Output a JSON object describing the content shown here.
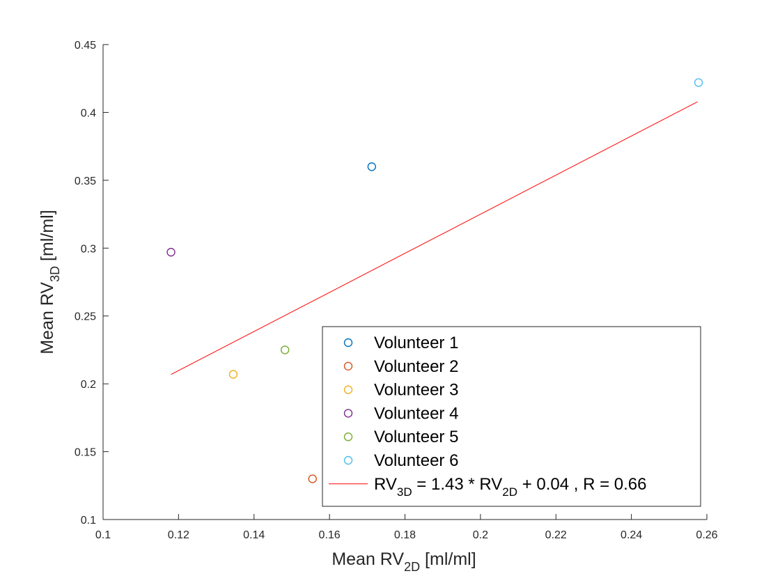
{
  "chart_data": {
    "type": "scatter",
    "xlabel": {
      "prefix": "Mean RV",
      "sub": "2D",
      "suffix": " [ml/ml]"
    },
    "ylabel": {
      "prefix": "Mean RV",
      "sub": "3D",
      "suffix": " [ml/ml]"
    },
    "xlim": [
      0.1,
      0.26
    ],
    "ylim": [
      0.1,
      0.45
    ],
    "xticks": [
      0.1,
      0.12,
      0.14,
      0.16,
      0.18,
      0.2,
      0.22,
      0.24,
      0.26
    ],
    "xtick_labels": [
      "0.1",
      "0.12",
      "0.14",
      "0.16",
      "0.18",
      "0.2",
      "0.22",
      "0.24",
      "0.26"
    ],
    "yticks": [
      0.1,
      0.15,
      0.2,
      0.25,
      0.3,
      0.35,
      0.4,
      0.45
    ],
    "ytick_labels": [
      "0.1",
      "0.15",
      "0.2",
      "0.25",
      "0.3",
      "0.35",
      "0.4",
      "0.45"
    ],
    "grid": false,
    "series": [
      {
        "name": "Volunteer 1",
        "color": "#0072BD",
        "x": [
          0.1712
        ],
        "y": [
          0.36
        ]
      },
      {
        "name": "Volunteer 2",
        "color": "#D95319",
        "x": [
          0.1555
        ],
        "y": [
          0.13
        ]
      },
      {
        "name": "Volunteer 3",
        "color": "#EDB120",
        "x": [
          0.1345
        ],
        "y": [
          0.207
        ]
      },
      {
        "name": "Volunteer 4",
        "color": "#7E2F8E",
        "x": [
          0.118
        ],
        "y": [
          0.297
        ]
      },
      {
        "name": "Volunteer 5",
        "color": "#77AC30",
        "x": [
          0.1482
        ],
        "y": [
          0.225
        ]
      },
      {
        "name": "Volunteer 6",
        "color": "#4DBEEE",
        "x": [
          0.2578
        ],
        "y": [
          0.422
        ]
      }
    ],
    "fit_line": {
      "color": "#FF0000",
      "x": [
        0.118,
        0.2575
      ],
      "y": [
        0.2069,
        0.4078
      ],
      "label_parts": [
        {
          "text": "RV",
          "sub": false
        },
        {
          "text": "3D",
          "sub": true
        },
        {
          "text": " = 1.43 * RV",
          "sub": false
        },
        {
          "text": "2D",
          "sub": true
        },
        {
          "text": " + 0.04 , R = 0.66",
          "sub": false
        }
      ]
    },
    "legend": {
      "location": "bottom-right"
    }
  }
}
